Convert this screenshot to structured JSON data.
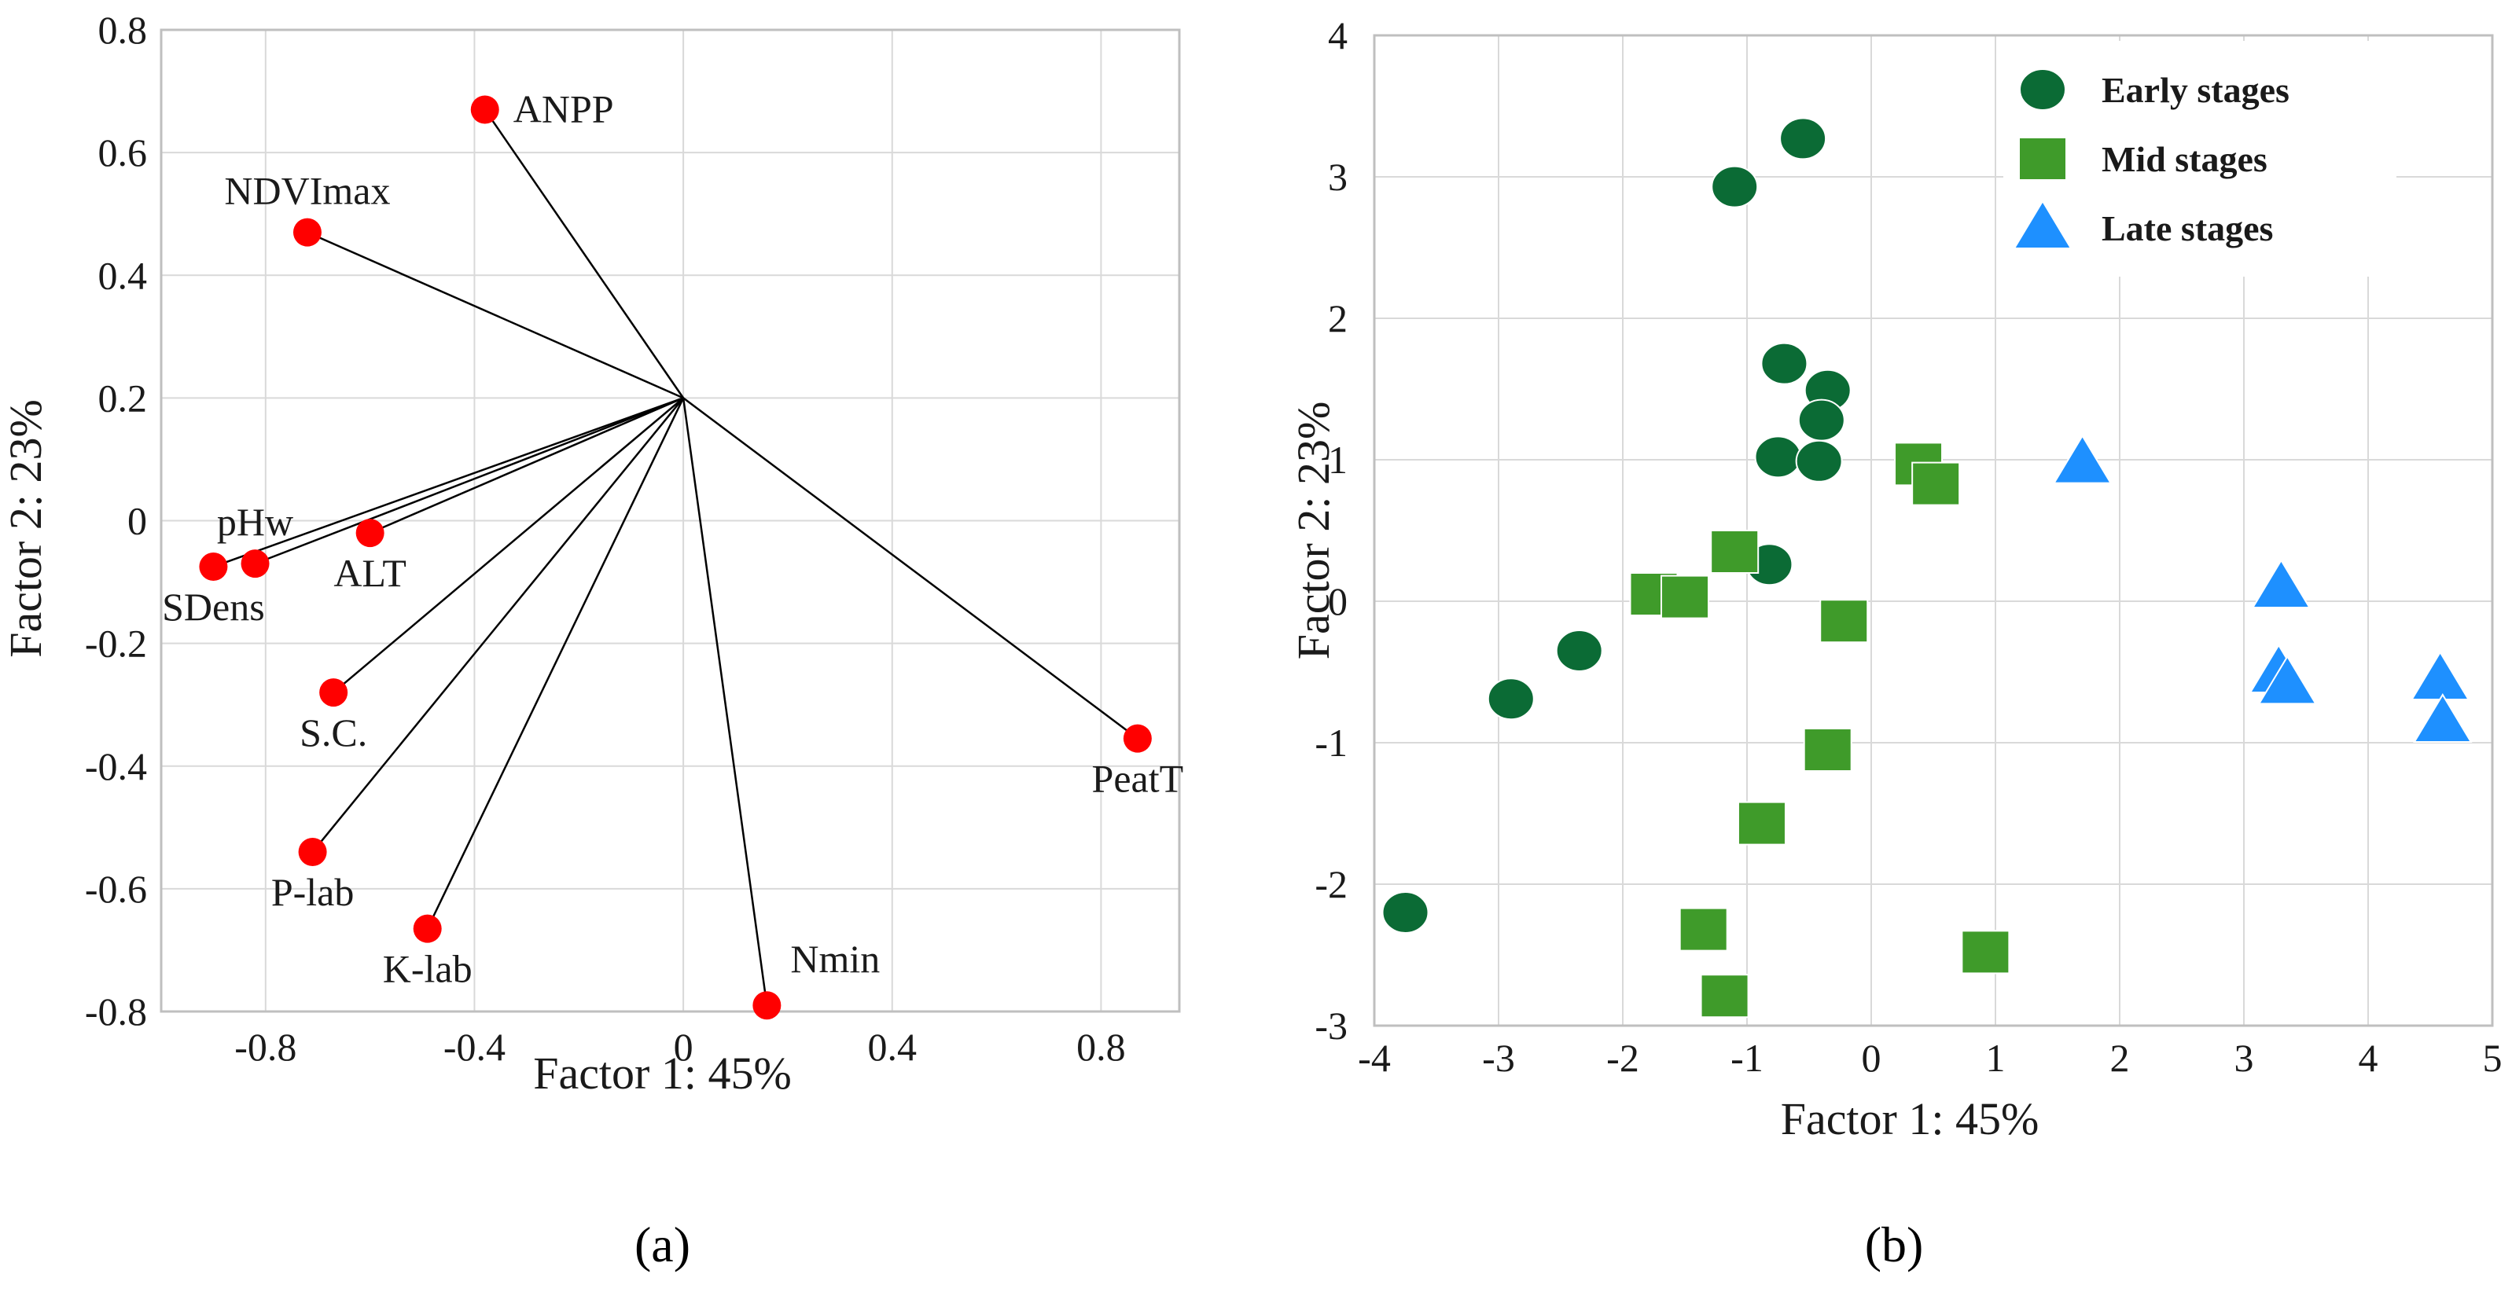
{
  "chart_data": [
    {
      "type": "scatter",
      "panel_label": "(a)",
      "panel_letter": "a",
      "subtype": "loading-biplot",
      "xlabel": "Factor 1: 45%",
      "ylabel": "Factor 2: 23%",
      "xlim": [
        -1.0,
        0.95
      ],
      "ylim": [
        -0.8,
        0.8
      ],
      "xticks": [
        -0.8,
        -0.4,
        0,
        0.4,
        0.8
      ],
      "xtick_labels": [
        "-0.8",
        "-0.4",
        "0",
        "0.4",
        "0.8"
      ],
      "yticks": [
        0.8,
        0.6,
        0.4,
        0.2,
        0,
        -0.2,
        -0.4,
        -0.6,
        -0.8
      ],
      "ytick_labels": [
        "0.8",
        "0.6",
        "0.4",
        "0.2",
        "0",
        "-0.2",
        "-0.4",
        "-0.6",
        "-0.8"
      ],
      "grid": true,
      "vector_origin": [
        0,
        0.2
      ],
      "point_color": "#ff0000",
      "points": [
        {
          "label": "ANPP",
          "x": -0.38,
          "y": 0.67,
          "label_pos": "right"
        },
        {
          "label": "NDVImax",
          "x": -0.72,
          "y": 0.47,
          "label_pos": "above"
        },
        {
          "label": "pHw",
          "x": -0.82,
          "y": -0.07,
          "label_pos": "above"
        },
        {
          "label": "SDens",
          "x": -0.9,
          "y": -0.075,
          "label_pos": "below"
        },
        {
          "label": "ALT",
          "x": -0.6,
          "y": -0.02,
          "label_pos": "below"
        },
        {
          "label": "S.C.",
          "x": -0.67,
          "y": -0.28,
          "label_pos": "below"
        },
        {
          "label": "P-lab",
          "x": -0.71,
          "y": -0.54,
          "label_pos": "below"
        },
        {
          "label": "K-lab",
          "x": -0.49,
          "y": -0.665,
          "label_pos": "below"
        },
        {
          "label": "Nmin",
          "x": 0.16,
          "y": -0.79,
          "label_pos": "above-right"
        },
        {
          "label": "PeatT",
          "x": 0.87,
          "y": -0.355,
          "label_pos": "below"
        }
      ]
    },
    {
      "type": "scatter",
      "panel_label": "(b)",
      "panel_letter": "b",
      "xlabel": "Factor 1: 45%",
      "ylabel": "Factor 2: 23%",
      "xlim": [
        -4,
        5
      ],
      "ylim": [
        -3,
        4
      ],
      "xticks": [
        -4,
        -3,
        -2,
        -1,
        0,
        1,
        2,
        3,
        4,
        5
      ],
      "xtick_labels": [
        "-4",
        "-3",
        "-2",
        "-1",
        "0",
        "1",
        "2",
        "3",
        "4",
        "5"
      ],
      "yticks": [
        4,
        3,
        2,
        1,
        0,
        -1,
        -2,
        -3
      ],
      "ytick_labels": [
        "4",
        "3",
        "2",
        "1",
        "0",
        "-1",
        "-2",
        "-3"
      ],
      "grid": true,
      "legend_position": "top-right",
      "series": [
        {
          "name": "Early stages",
          "marker": "circle",
          "color": "#0b6b35",
          "points": [
            [
              -0.55,
              3.27
            ],
            [
              -1.1,
              2.93
            ],
            [
              -0.7,
              1.68
            ],
            [
              -0.35,
              1.49
            ],
            [
              -0.4,
              1.28
            ],
            [
              -0.75,
              1.02
            ],
            [
              -0.42,
              0.99
            ],
            [
              -0.82,
              0.26
            ],
            [
              -2.35,
              -0.35
            ],
            [
              -2.9,
              -0.69
            ],
            [
              -3.75,
              -2.2
            ]
          ]
        },
        {
          "name": "Mid stages",
          "marker": "square",
          "color": "#3f9b2a",
          "points": [
            [
              0.38,
              0.97
            ],
            [
              0.52,
              0.83
            ],
            [
              -1.1,
              0.35
            ],
            [
              -1.75,
              0.05
            ],
            [
              -1.5,
              0.03
            ],
            [
              -0.22,
              -0.14
            ],
            [
              -0.35,
              -1.05
            ],
            [
              -0.88,
              -1.57
            ],
            [
              -1.35,
              -2.32
            ],
            [
              -1.18,
              -2.79
            ],
            [
              0.92,
              -2.48
            ]
          ]
        },
        {
          "name": "Late stages",
          "marker": "triangle",
          "color": "#1e90ff",
          "points": [
            [
              1.7,
              0.98
            ],
            [
              3.3,
              0.1
            ],
            [
              3.28,
              -0.5
            ],
            [
              3.35,
              -0.58
            ],
            [
              4.58,
              -0.55
            ],
            [
              4.6,
              -0.85
            ]
          ]
        }
      ]
    }
  ]
}
